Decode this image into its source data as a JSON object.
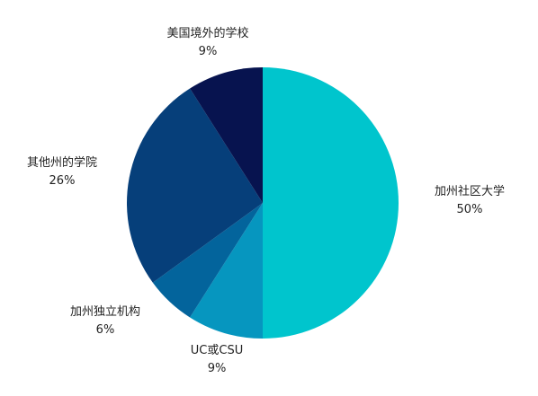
{
  "chart_data": {
    "type": "pie",
    "start_angle_deg": 0,
    "direction": "clockwise",
    "slices": [
      {
        "label": "加州社区大学",
        "value": 50,
        "display": "50%",
        "color": "#00C5CD"
      },
      {
        "label": "UC或CSU",
        "value": 9,
        "display": "9%",
        "color": "#0696BF"
      },
      {
        "label": "加州独立机构",
        "value": 6,
        "display": "6%",
        "color": "#03649C"
      },
      {
        "label": "其他州的学院",
        "value": 26,
        "display": "26%",
        "color": "#063F7A"
      },
      {
        "label": "美国境外的学校",
        "value": 9,
        "display": "9%",
        "color": "#07134F"
      }
    ],
    "legend": "none"
  }
}
